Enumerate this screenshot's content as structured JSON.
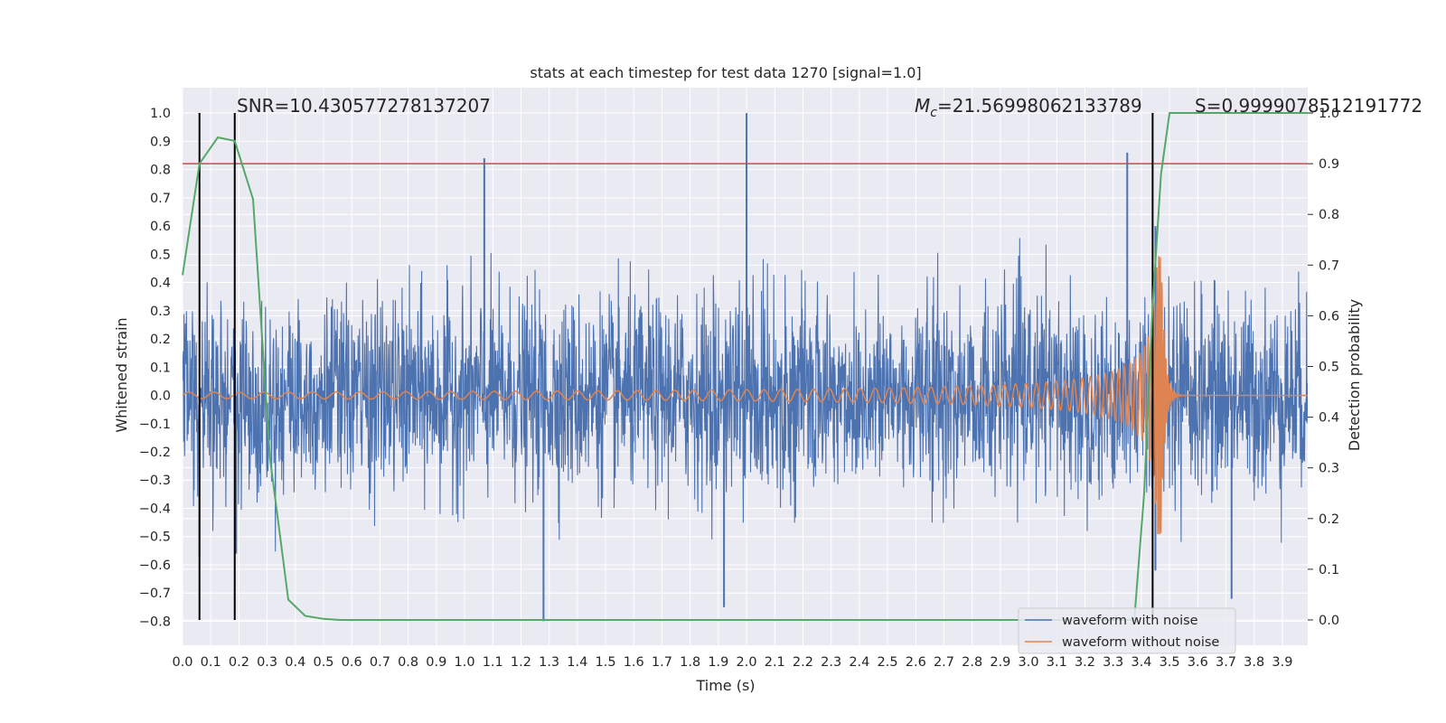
{
  "chart_data": {
    "type": "line",
    "title": "stats at each timestep for test data 1270 [signal=1.0]",
    "xlabel": "Time (s)",
    "ylabel": "Whitened strain",
    "y2label": "Detection probability",
    "xlim": [
      0.0,
      3.99
    ],
    "ylim": [
      -0.885,
      1.09
    ],
    "y2lim": [
      -0.05,
      1.05
    ],
    "xticks": [
      "0.0",
      "0.1",
      "0.2",
      "0.3",
      "0.4",
      "0.5",
      "0.6",
      "0.7",
      "0.8",
      "0.9",
      "1.0",
      "1.1",
      "1.2",
      "1.3",
      "1.4",
      "1.5",
      "1.6",
      "1.7",
      "1.8",
      "1.9",
      "2.0",
      "2.1",
      "2.2",
      "2.3",
      "2.4",
      "2.5",
      "2.6",
      "2.7",
      "2.8",
      "2.9",
      "3.0",
      "3.1",
      "3.2",
      "3.3",
      "3.4",
      "3.5",
      "3.6",
      "3.7",
      "3.8",
      "3.9"
    ],
    "yticks": [
      "1.0",
      "0.9",
      "0.8",
      "0.7",
      "0.6",
      "0.5",
      "0.4",
      "0.3",
      "0.2",
      "0.1",
      "0.0",
      "-0.1",
      "-0.2",
      "-0.3",
      "-0.4",
      "-0.5",
      "-0.6",
      "-0.7",
      "-0.8"
    ],
    "y2ticks": [
      "1.0",
      "0.9",
      "0.8",
      "0.7",
      "0.6",
      "0.5",
      "0.4",
      "0.3",
      "0.2",
      "0.1",
      "0.0"
    ],
    "annotations": {
      "snr": "SNR=10.430577278137207",
      "mc_symbol": "M",
      "mc_subscript": "c",
      "mc_value": "=21.56998062133789",
      "s": "S=0.9999078512191772"
    },
    "threshold_line": {
      "axis": "y2",
      "value": 0.9,
      "color": "#c44e52"
    },
    "vertical_lines": [
      0.06,
      0.185,
      3.44
    ],
    "series": [
      {
        "name": "waveform with noise",
        "color": "#4c72b0",
        "description": "whitened noisy strain, ~|0.3| typical amplitude with spikes",
        "spikes": [
          [
            2.0,
            1.0
          ],
          [
            1.07,
            0.84
          ],
          [
            3.35,
            0.86
          ],
          [
            1.28,
            -0.8
          ],
          [
            1.92,
            -0.75
          ],
          [
            3.45,
            0.6
          ],
          [
            3.45,
            -0.62
          ],
          [
            0.06,
            -0.57
          ],
          [
            0.19,
            -0.56
          ],
          [
            3.72,
            -0.72
          ]
        ]
      },
      {
        "name": "waveform without noise",
        "color": "#dd8452",
        "description": "chirp signal increasing in frequency/amplitude, merger ~3.47 s, peak ~0.52",
        "merger_time": 3.47,
        "peak_amplitude": 0.52
      },
      {
        "name": "detection probability",
        "color": "#55a868",
        "axis": "y2",
        "x": [
          0.0,
          0.06,
          0.125,
          0.185,
          0.25,
          0.31,
          0.375,
          0.435,
          0.5,
          0.56,
          0.625,
          1.0,
          2.0,
          3.0,
          3.375,
          3.41,
          3.44,
          3.47,
          3.5,
          3.6,
          3.99
        ],
        "values": [
          0.68,
          0.9,
          0.952,
          0.945,
          0.83,
          0.32,
          0.04,
          0.008,
          0.002,
          0.0,
          0.0,
          0.0,
          0.0,
          0.0,
          0.0,
          0.25,
          0.62,
          0.88,
          1.0,
          1.0,
          1.0
        ]
      }
    ],
    "legend": {
      "position": "lower-right",
      "entries": [
        "waveform with noise",
        "waveform without noise"
      ]
    },
    "colors": {
      "background": "#eaeaf2",
      "grid": "#ffffff"
    }
  }
}
